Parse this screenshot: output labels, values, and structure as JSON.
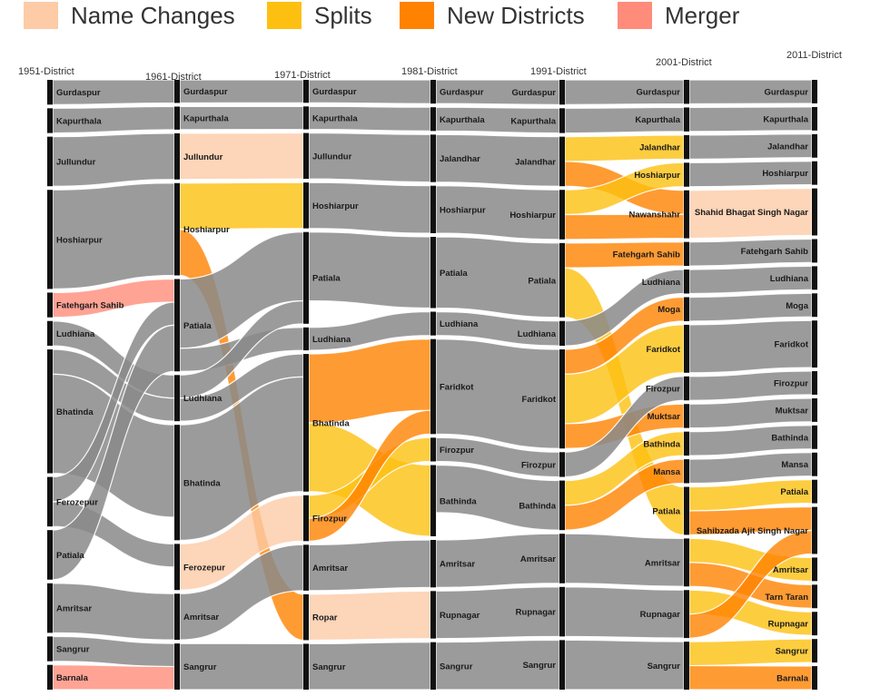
{
  "legend": {
    "items": [
      {
        "label": "Name Changes",
        "color": "#FDCBA6"
      },
      {
        "label": "Splits",
        "color": "#FDC010"
      },
      {
        "label": "New Districts",
        "color": "#FF8200"
      },
      {
        "label": "Merger",
        "color": "#FF8C7A"
      }
    ]
  },
  "colors": {
    "same": "#8A8A8A",
    "rename": "#FDCBA6",
    "split": "#FDC010",
    "new": "#FF8200",
    "merger": "#FF8C7A",
    "bar": "#111111"
  },
  "columns": [
    "1951-District",
    "1961-District",
    "1971-District",
    "1981-District",
    "1991-District",
    "2001-District",
    "2011-District"
  ],
  "nodes": [
    [
      "Gurdaspur",
      "Kapurthala",
      "Jullundur",
      "Hoshiarpur",
      "Fatehgarh Sahib",
      "Ludhiana",
      "Bhatinda",
      "Ferozepur",
      "Patiala",
      "Amritsar",
      "Sangrur",
      "Barnala"
    ],
    [
      "Gurdaspur",
      "Kapurthala",
      "Jullundur",
      "Hoshiarpur",
      "Patiala",
      "Ludhiana",
      "Bhatinda",
      "Ferozepur",
      "Amritsar",
      "Sangrur"
    ],
    [
      "Gurdaspur",
      "Kapurthala",
      "Jullundur",
      "Hoshiarpur",
      "Patiala",
      "Ludhiana",
      "Bhatinda",
      "Firozpur",
      "Amritsar",
      "Ropar",
      "Sangrur"
    ],
    [
      "Gurdaspur",
      "Kapurthala",
      "Jalandhar",
      "Hoshiarpur",
      "Patiala",
      "Ludhiana",
      "Faridkot",
      "Firozpur",
      "Bathinda",
      "Amritsar",
      "Rupnagar",
      "Sangrur"
    ],
    [
      "Gurdaspur",
      "Kapurthala",
      "Jalandhar",
      "Hoshiarpur",
      "Patiala",
      "Ludhiana",
      "Faridkot",
      "Firozpur",
      "Bathinda",
      "Amritsar",
      "Rupnagar",
      "Sangrur"
    ],
    [
      "Gurdaspur",
      "Kapurthala",
      "Jalandhar",
      "Hoshiarpur",
      "Nawanshahr",
      "Fatehgarh Sahib",
      "Ludhiana",
      "Moga",
      "Faridkot",
      "Firozpur",
      "Muktsar",
      "Bathinda",
      "Mansa",
      "Patiala",
      "Amritsar",
      "Rupnagar",
      "Sangrur"
    ],
    [
      "Gurdaspur",
      "Kapurthala",
      "Jalandhar",
      "Hoshiarpur",
      "Shahid Bhagat Singh Nagar",
      "Fatehgarh Sahib",
      "Ludhiana",
      "Moga",
      "Faridkot",
      "Firozpur",
      "Muktsar",
      "Bathinda",
      "Mansa",
      "Patiala",
      "Sahibzada Ajit Singh Nagar",
      "Amritsar",
      "Tarn Taran",
      "Rupnagar",
      "Sangrur",
      "Barnala"
    ]
  ],
  "links": [
    {
      "from": [
        0,
        0
      ],
      "to": [
        1,
        0
      ],
      "value": 4,
      "kind": "same"
    },
    {
      "from": [
        0,
        1
      ],
      "to": [
        1,
        1
      ],
      "value": 4,
      "kind": "same"
    },
    {
      "from": [
        0,
        2
      ],
      "to": [
        1,
        2
      ],
      "value": 8,
      "kind": "same"
    },
    {
      "from": [
        0,
        3
      ],
      "to": [
        1,
        3
      ],
      "value": 16,
      "kind": "same"
    },
    {
      "from": [
        0,
        4
      ],
      "to": [
        1,
        4
      ],
      "value": 4,
      "kind": "merger"
    },
    {
      "from": [
        0,
        5
      ],
      "to": [
        1,
        5
      ],
      "value": 4,
      "kind": "same"
    },
    {
      "from": [
        0,
        6
      ],
      "to": [
        1,
        5
      ],
      "value": 4,
      "kind": "same"
    },
    {
      "from": [
        0,
        6
      ],
      "to": [
        1,
        6
      ],
      "value": 16,
      "kind": "same"
    },
    {
      "from": [
        0,
        7
      ],
      "to": [
        1,
        4
      ],
      "value": 4,
      "kind": "same"
    },
    {
      "from": [
        0,
        7
      ],
      "to": [
        1,
        7
      ],
      "value": 4,
      "kind": "same"
    },
    {
      "from": [
        0,
        8
      ],
      "to": [
        1,
        4
      ],
      "value": 8,
      "kind": "same"
    },
    {
      "from": [
        0,
        9
      ],
      "to": [
        1,
        8
      ],
      "value": 8,
      "kind": "same"
    },
    {
      "from": [
        0,
        10
      ],
      "to": [
        1,
        9
      ],
      "value": 4,
      "kind": "same"
    },
    {
      "from": [
        0,
        11
      ],
      "to": [
        1,
        9
      ],
      "value": 4,
      "kind": "merger"
    },
    {
      "from": [
        1,
        0
      ],
      "to": [
        2,
        0
      ],
      "value": 4,
      "kind": "same"
    },
    {
      "from": [
        1,
        1
      ],
      "to": [
        2,
        1
      ],
      "value": 4,
      "kind": "same"
    },
    {
      "from": [
        1,
        2
      ],
      "to": [
        2,
        2
      ],
      "value": 8,
      "kind": "rename"
    },
    {
      "from": [
        1,
        3
      ],
      "to": [
        2,
        3
      ],
      "value": 8,
      "kind": "split"
    },
    {
      "from": [
        1,
        3
      ],
      "to": [
        2,
        9
      ],
      "value": 8,
      "kind": "new"
    },
    {
      "from": [
        1,
        4
      ],
      "to": [
        2,
        4
      ],
      "value": 12,
      "kind": "same"
    },
    {
      "from": [
        1,
        4
      ],
      "to": [
        2,
        5
      ],
      "value": 4,
      "kind": "same"
    },
    {
      "from": [
        1,
        5
      ],
      "to": [
        2,
        4
      ],
      "value": 4,
      "kind": "same"
    },
    {
      "from": [
        1,
        5
      ],
      "to": [
        2,
        6
      ],
      "value": 4,
      "kind": "same"
    },
    {
      "from": [
        1,
        6
      ],
      "to": [
        2,
        6
      ],
      "value": 20,
      "kind": "same"
    },
    {
      "from": [
        1,
        7
      ],
      "to": [
        2,
        7
      ],
      "value": 8,
      "kind": "rename"
    },
    {
      "from": [
        1,
        8
      ],
      "to": [
        2,
        8
      ],
      "value": 8,
      "kind": "same"
    },
    {
      "from": [
        1,
        9
      ],
      "to": [
        2,
        10
      ],
      "value": 8,
      "kind": "same"
    },
    {
      "from": [
        2,
        0
      ],
      "to": [
        3,
        0
      ],
      "value": 4,
      "kind": "same"
    },
    {
      "from": [
        2,
        1
      ],
      "to": [
        3,
        1
      ],
      "value": 4,
      "kind": "same"
    },
    {
      "from": [
        2,
        2
      ],
      "to": [
        3,
        2
      ],
      "value": 8,
      "kind": "same"
    },
    {
      "from": [
        2,
        3
      ],
      "to": [
        3,
        3
      ],
      "value": 8,
      "kind": "same"
    },
    {
      "from": [
        2,
        4
      ],
      "to": [
        3,
        4
      ],
      "value": 12,
      "kind": "same"
    },
    {
      "from": [
        2,
        5
      ],
      "to": [
        3,
        5
      ],
      "value": 4,
      "kind": "same"
    },
    {
      "from": [
        2,
        6
      ],
      "to": [
        3,
        6
      ],
      "value": 12,
      "kind": "new"
    },
    {
      "from": [
        2,
        6
      ],
      "to": [
        3,
        8
      ],
      "value": 12,
      "kind": "split"
    },
    {
      "from": [
        2,
        7
      ],
      "to": [
        3,
        7
      ],
      "value": 4,
      "kind": "split"
    },
    {
      "from": [
        2,
        7
      ],
      "to": [
        3,
        6
      ],
      "value": 4,
      "kind": "new"
    },
    {
      "from": [
        2,
        8
      ],
      "to": [
        3,
        9
      ],
      "value": 8,
      "kind": "same"
    },
    {
      "from": [
        2,
        9
      ],
      "to": [
        3,
        10
      ],
      "value": 8,
      "kind": "rename"
    },
    {
      "from": [
        2,
        10
      ],
      "to": [
        3,
        11
      ],
      "value": 8,
      "kind": "same"
    },
    {
      "from": [
        3,
        0
      ],
      "to": [
        4,
        0
      ],
      "value": 4,
      "kind": "same"
    },
    {
      "from": [
        3,
        1
      ],
      "to": [
        4,
        1
      ],
      "value": 4,
      "kind": "same"
    },
    {
      "from": [
        3,
        2
      ],
      "to": [
        4,
        2
      ],
      "value": 8,
      "kind": "same"
    },
    {
      "from": [
        3,
        3
      ],
      "to": [
        4,
        3
      ],
      "value": 8,
      "kind": "same"
    },
    {
      "from": [
        3,
        4
      ],
      "to": [
        4,
        4
      ],
      "value": 12,
      "kind": "same"
    },
    {
      "from": [
        3,
        5
      ],
      "to": [
        4,
        5
      ],
      "value": 4,
      "kind": "same"
    },
    {
      "from": [
        3,
        6
      ],
      "to": [
        4,
        6
      ],
      "value": 16,
      "kind": "same"
    },
    {
      "from": [
        3,
        7
      ],
      "to": [
        4,
        7
      ],
      "value": 4,
      "kind": "same"
    },
    {
      "from": [
        3,
        8
      ],
      "to": [
        4,
        8
      ],
      "value": 8,
      "kind": "same"
    },
    {
      "from": [
        3,
        9
      ],
      "to": [
        4,
        9
      ],
      "value": 8,
      "kind": "same"
    },
    {
      "from": [
        3,
        10
      ],
      "to": [
        4,
        10
      ],
      "value": 8,
      "kind": "same"
    },
    {
      "from": [
        3,
        11
      ],
      "to": [
        4,
        11
      ],
      "value": 8,
      "kind": "same"
    },
    {
      "from": [
        4,
        0
      ],
      "to": [
        5,
        0
      ],
      "value": 4,
      "kind": "same"
    },
    {
      "from": [
        4,
        1
      ],
      "to": [
        5,
        1
      ],
      "value": 4,
      "kind": "same"
    },
    {
      "from": [
        4,
        2
      ],
      "to": [
        5,
        2
      ],
      "value": 4,
      "kind": "split"
    },
    {
      "from": [
        4,
        2
      ],
      "to": [
        5,
        4
      ],
      "value": 4,
      "kind": "new"
    },
    {
      "from": [
        4,
        3
      ],
      "to": [
        5,
        3
      ],
      "value": 4,
      "kind": "split"
    },
    {
      "from": [
        4,
        3
      ],
      "to": [
        5,
        4
      ],
      "value": 4,
      "kind": "new"
    },
    {
      "from": [
        4,
        4
      ],
      "to": [
        5,
        5
      ],
      "value": 4,
      "kind": "new"
    },
    {
      "from": [
        4,
        4
      ],
      "to": [
        5,
        13
      ],
      "value": 8,
      "kind": "split"
    },
    {
      "from": [
        4,
        5
      ],
      "to": [
        5,
        6
      ],
      "value": 4,
      "kind": "same"
    },
    {
      "from": [
        4,
        6
      ],
      "to": [
        5,
        7
      ],
      "value": 4,
      "kind": "new"
    },
    {
      "from": [
        4,
        6
      ],
      "to": [
        5,
        8
      ],
      "value": 8,
      "kind": "split"
    },
    {
      "from": [
        4,
        6
      ],
      "to": [
        5,
        10
      ],
      "value": 4,
      "kind": "new"
    },
    {
      "from": [
        4,
        7
      ],
      "to": [
        5,
        9
      ],
      "value": 4,
      "kind": "same"
    },
    {
      "from": [
        4,
        8
      ],
      "to": [
        5,
        11
      ],
      "value": 4,
      "kind": "split"
    },
    {
      "from": [
        4,
        8
      ],
      "to": [
        5,
        12
      ],
      "value": 4,
      "kind": "new"
    },
    {
      "from": [
        4,
        9
      ],
      "to": [
        5,
        14
      ],
      "value": 8,
      "kind": "same"
    },
    {
      "from": [
        4,
        10
      ],
      "to": [
        5,
        15
      ],
      "value": 8,
      "kind": "same"
    },
    {
      "from": [
        4,
        11
      ],
      "to": [
        5,
        16
      ],
      "value": 8,
      "kind": "same"
    },
    {
      "from": [
        5,
        0
      ],
      "to": [
        6,
        0
      ],
      "value": 4,
      "kind": "same"
    },
    {
      "from": [
        5,
        1
      ],
      "to": [
        6,
        1
      ],
      "value": 4,
      "kind": "same"
    },
    {
      "from": [
        5,
        2
      ],
      "to": [
        6,
        2
      ],
      "value": 4,
      "kind": "same"
    },
    {
      "from": [
        5,
        3
      ],
      "to": [
        6,
        3
      ],
      "value": 4,
      "kind": "same"
    },
    {
      "from": [
        5,
        4
      ],
      "to": [
        6,
        4
      ],
      "value": 8,
      "kind": "rename"
    },
    {
      "from": [
        5,
        5
      ],
      "to": [
        6,
        5
      ],
      "value": 4,
      "kind": "same"
    },
    {
      "from": [
        5,
        6
      ],
      "to": [
        6,
        6
      ],
      "value": 4,
      "kind": "same"
    },
    {
      "from": [
        5,
        7
      ],
      "to": [
        6,
        7
      ],
      "value": 4,
      "kind": "same"
    },
    {
      "from": [
        5,
        8
      ],
      "to": [
        6,
        8
      ],
      "value": 8,
      "kind": "same"
    },
    {
      "from": [
        5,
        9
      ],
      "to": [
        6,
        9
      ],
      "value": 4,
      "kind": "same"
    },
    {
      "from": [
        5,
        10
      ],
      "to": [
        6,
        10
      ],
      "value": 4,
      "kind": "same"
    },
    {
      "from": [
        5,
        11
      ],
      "to": [
        6,
        11
      ],
      "value": 4,
      "kind": "same"
    },
    {
      "from": [
        5,
        12
      ],
      "to": [
        6,
        12
      ],
      "value": 4,
      "kind": "same"
    },
    {
      "from": [
        5,
        13
      ],
      "to": [
        6,
        13
      ],
      "value": 4,
      "kind": "split"
    },
    {
      "from": [
        5,
        13
      ],
      "to": [
        6,
        14
      ],
      "value": 4,
      "kind": "new"
    },
    {
      "from": [
        5,
        14
      ],
      "to": [
        6,
        15
      ],
      "value": 4,
      "kind": "split"
    },
    {
      "from": [
        5,
        14
      ],
      "to": [
        6,
        16
      ],
      "value": 4,
      "kind": "new"
    },
    {
      "from": [
        5,
        15
      ],
      "to": [
        6,
        17
      ],
      "value": 4,
      "kind": "split"
    },
    {
      "from": [
        5,
        15
      ],
      "to": [
        6,
        14
      ],
      "value": 4,
      "kind": "new"
    },
    {
      "from": [
        5,
        16
      ],
      "to": [
        6,
        18
      ],
      "value": 4,
      "kind": "split"
    },
    {
      "from": [
        5,
        16
      ],
      "to": [
        6,
        19
      ],
      "value": 4,
      "kind": "new"
    }
  ]
}
